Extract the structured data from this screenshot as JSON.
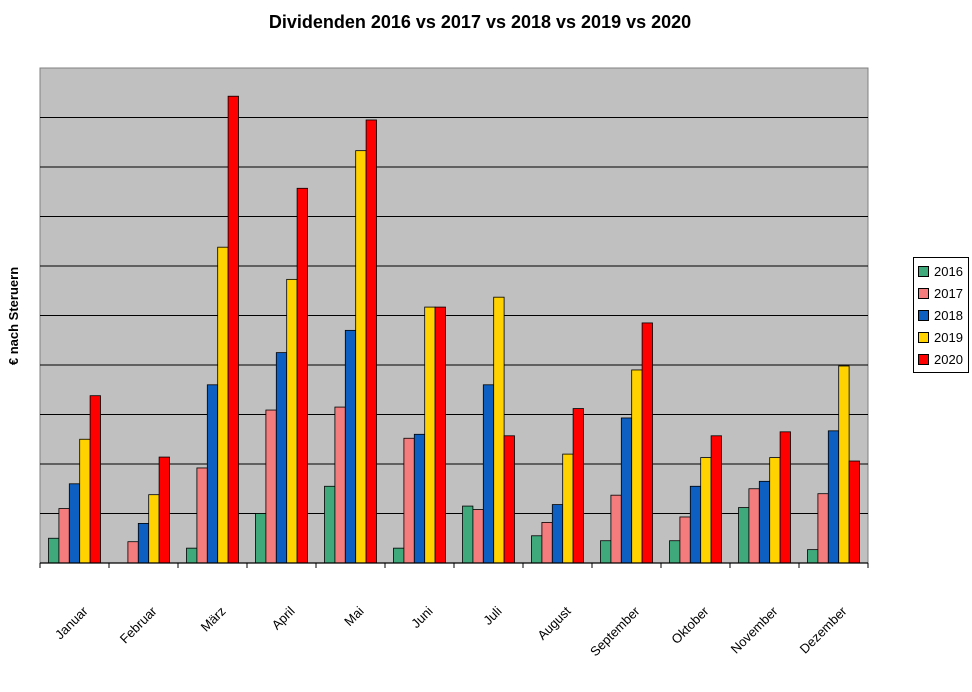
{
  "chart_data": {
    "type": "bar",
    "title": "Dividenden 2016 vs 2017 vs 2018 vs 2019 vs 2020",
    "xlabel": "",
    "ylabel": "€ nach Steruern",
    "ylim": [
      0,
      10
    ],
    "grid": true,
    "legend": "right",
    "categories": [
      "Januar",
      "Februar",
      "März",
      "April",
      "Mai",
      "Juni",
      "Juli",
      "August",
      "September",
      "Oktober",
      "November",
      "Dezember"
    ],
    "series": [
      {
        "name": "2016",
        "color": "#3fa97c",
        "values": [
          0.5,
          0,
          0.3,
          1.0,
          1.55,
          0.3,
          1.15,
          0.55,
          0.45,
          0.45,
          1.12,
          0.27
        ]
      },
      {
        "name": "2017",
        "color": "#f47c7c",
        "values": [
          1.1,
          0.43,
          1.92,
          3.09,
          3.15,
          2.52,
          1.08,
          0.82,
          1.37,
          0.93,
          1.5,
          1.4
        ]
      },
      {
        "name": "2018",
        "color": "#0e5fc2",
        "values": [
          1.6,
          0.8,
          3.6,
          4.25,
          4.7,
          2.6,
          3.6,
          1.18,
          2.93,
          1.55,
          1.65,
          2.67
        ]
      },
      {
        "name": "2019",
        "color": "#ffd200",
        "values": [
          2.5,
          1.38,
          6.38,
          5.73,
          8.33,
          5.17,
          5.37,
          2.2,
          3.9,
          2.13,
          2.13,
          3.98
        ]
      },
      {
        "name": "2020",
        "color": "#ff0000",
        "values": [
          3.38,
          2.14,
          9.43,
          7.57,
          8.95,
          5.17,
          2.57,
          3.12,
          4.85,
          2.57,
          2.65,
          2.06
        ]
      }
    ]
  }
}
